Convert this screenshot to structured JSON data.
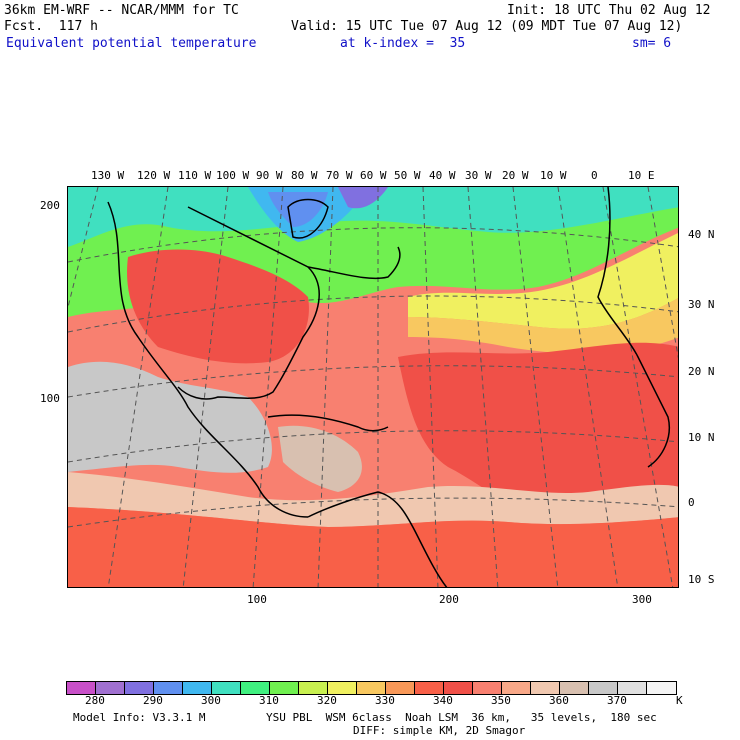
{
  "header": {
    "title": "36km EM-WRF -- NCAR/MMM for TC",
    "forecast": "Fcst.  117 h",
    "init": "Init: 18 UTC Thu 02 Aug 12",
    "valid": "Valid: 15 UTC Tue 07 Aug 12 (09 MDT Tue 07 Aug 12)",
    "field": "Equivalent potential temperature",
    "level": "at k-index =  35",
    "smooth": "sm= 6"
  },
  "map": {
    "lon_labels": [
      "130 W",
      "120 W",
      "110 W",
      "100 W",
      "90 W",
      "80 W",
      "70 W",
      "60 W",
      "50 W",
      "40 W",
      "30 W",
      "20 W",
      "10 W",
      "0",
      "10 E"
    ],
    "lat_labels": [
      "40 N",
      "30 N",
      "20 N",
      "10 N",
      "0",
      "10 S"
    ],
    "y_grid_labels": [
      "200",
      "100"
    ],
    "x_grid_labels": [
      "100",
      "200",
      "300"
    ]
  },
  "colorbar": {
    "colors": [
      "#c850c8",
      "#a070d0",
      "#8070e0",
      "#6090f0",
      "#40b8f0",
      "#40e0c0",
      "#40f080",
      "#70f050",
      "#c8f050",
      "#f0f060",
      "#f8c860",
      "#f89858",
      "#f86048",
      "#f05048",
      "#f88070",
      "#f8a888",
      "#f0c8b0",
      "#d8c0b0",
      "#c8c8c8",
      "#e0e0e0",
      "#f4f4f4"
    ],
    "labels": [
      "280",
      "290",
      "300",
      "310",
      "320",
      "330",
      "340",
      "350",
      "360",
      "370"
    ],
    "unit": "K"
  },
  "footer": {
    "model_info": "Model Info: V3.3.1 M",
    "physics": "YSU PBL  WSM 6class  Noah LSM  36 km,   35 levels,  180 sec",
    "diffusion": "DIFF: simple KM, 2D Smagor"
  }
}
